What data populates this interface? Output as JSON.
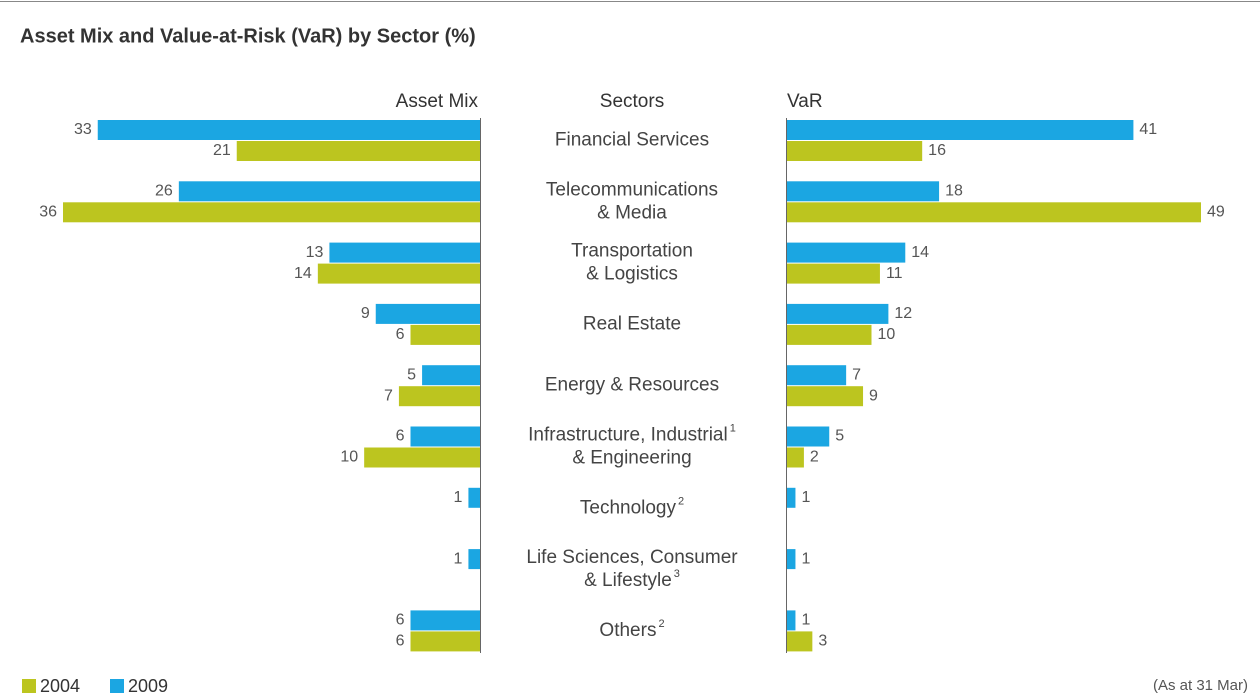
{
  "chart_data": {
    "type": "butterfly",
    "title": "Asset Mix and Value-at-Risk (VaR) by Sector (%)",
    "left_header": "Asset Mix",
    "center_header": "Sectors",
    "right_header": "VaR",
    "footnote": "(As at 31 Mar)",
    "categories": [
      [
        [
          "Financial Services"
        ]
      ],
      [
        [
          "Telecommunications"
        ],
        [
          "& Media"
        ]
      ],
      [
        [
          "Transportation"
        ],
        [
          "& Logistics"
        ]
      ],
      [
        [
          "Real Estate"
        ]
      ],
      [
        [
          "Energy & Resources"
        ]
      ],
      [
        [
          "Infrastructure, Industrial",
          "1"
        ],
        [
          "& Engineering"
        ]
      ],
      [
        [
          "Technology",
          "2"
        ]
      ],
      [
        [
          "Life Sciences, Consumer"
        ],
        [
          "& Lifestyle",
          "3"
        ]
      ],
      [
        [
          "Others",
          "2"
        ]
      ]
    ],
    "series": [
      {
        "name": "2004",
        "color": "#bcc51f",
        "asset_mix": [
          21,
          36,
          14,
          6,
          7,
          10,
          null,
          null,
          6
        ],
        "var": [
          16,
          49,
          11,
          10,
          9,
          2,
          null,
          null,
          3
        ]
      },
      {
        "name": "2009",
        "color": "#1ba6e2",
        "asset_mix": [
          33,
          26,
          13,
          9,
          5,
          6,
          1,
          1,
          6
        ],
        "var": [
          41,
          18,
          14,
          12,
          7,
          5,
          1,
          1,
          1
        ]
      }
    ],
    "asset_mix_xlim": [
      0,
      36
    ],
    "var_xlim": [
      0,
      49
    ]
  }
}
